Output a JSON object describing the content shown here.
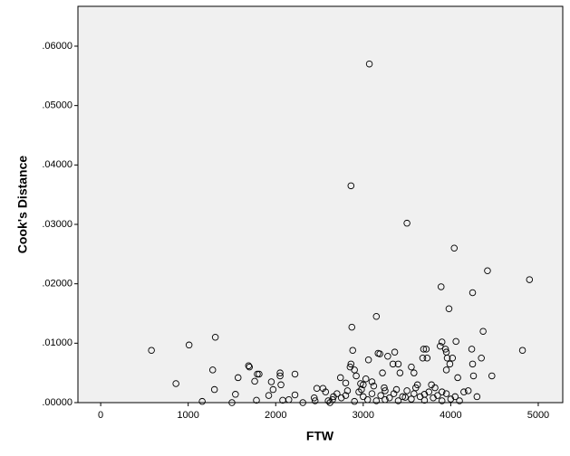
{
  "chart_data": {
    "type": "scatter",
    "x_label": "FTW",
    "y_label": "Cook's Distance",
    "color": "#000000",
    "xlim": [
      -260,
      5280
    ],
    "ylim": [
      0,
      0.0667
    ],
    "xticks": [
      0,
      1000,
      2000,
      3000,
      4000,
      5000
    ],
    "yticks": [
      {
        "value": 0,
        "label": ".00000"
      },
      {
        "value": 0.01,
        "label": ".01000"
      },
      {
        "value": 0.02,
        "label": ".02000"
      },
      {
        "value": 0.03,
        "label": ".03000"
      },
      {
        "value": 0.04,
        "label": ".04000"
      },
      {
        "value": 0.05,
        "label": ".05000"
      },
      {
        "value": 0.06,
        "label": ".06000"
      }
    ],
    "x": [
      580,
      860,
      1010,
      1160,
      1280,
      1300,
      1310,
      1500,
      1540,
      1570,
      1690,
      1700,
      1760,
      1790,
      1810,
      1780,
      1920,
      1950,
      1970,
      2050,
      2050,
      2060,
      2080,
      2150,
      2220,
      2220,
      2310,
      2440,
      2470,
      2540,
      2570,
      2620,
      2660,
      2740,
      2800,
      2820,
      2850,
      2860,
      2860,
      2870,
      2880,
      2900,
      2920,
      2970,
      3000,
      3030,
      3060,
      3070,
      3100,
      3150,
      3170,
      3190,
      3220,
      3240,
      3280,
      3340,
      3360,
      3400,
      3420,
      3500,
      3550,
      3580,
      3620,
      3680,
      3690,
      3720,
      3730,
      3780,
      3880,
      3890,
      3900,
      3940,
      3950,
      3950,
      3960,
      3980,
      3990,
      4020,
      4040,
      4060,
      4080,
      4240,
      4250,
      4250,
      4260,
      4370,
      4420,
      4470,
      4820,
      4900,
      4350,
      4200,
      4300,
      4150,
      2650,
      2700,
      2750,
      2800,
      2900,
      2950,
      3000,
      3050,
      3100,
      3150,
      3200,
      3250,
      3300,
      3350,
      3400,
      3450,
      3500,
      3550,
      3600,
      3650,
      3700,
      3750,
      3800,
      3850,
      3900,
      3950,
      4000,
      4050,
      3120,
      3380,
      3580,
      3820,
      2980,
      3250,
      3480,
      3700,
      3900,
      4100,
      2600,
      2450
    ],
    "values": [
      0.0088,
      0.0032,
      0.0097,
      0.0002,
      0.0055,
      0.0022,
      0.011,
      0,
      0.0014,
      0.0042,
      0.0062,
      0.006,
      0.0036,
      0.0048,
      0.0048,
      0.0004,
      0.0012,
      0.0035,
      0.0022,
      0.0045,
      0.005,
      0.003,
      0.0004,
      0.0005,
      0.0048,
      0.0013,
      0,
      0.0008,
      0.0024,
      0.0024,
      0.0018,
      0,
      0.001,
      0.0042,
      0.0033,
      0.002,
      0.006,
      0.0065,
      0.0365,
      0.0127,
      0.0088,
      0.0055,
      0.0045,
      0.0032,
      0.003,
      0.004,
      0.0072,
      0.057,
      0.0035,
      0.0145,
      0.0083,
      0.0082,
      0.005,
      0.0025,
      0.0078,
      0.0065,
      0.0085,
      0.0065,
      0.005,
      0.0302,
      0.006,
      0.005,
      0.003,
      0.0075,
      0.009,
      0.009,
      0.0075,
      0.003,
      0.0095,
      0.0195,
      0.0102,
      0.009,
      0.0055,
      0.0085,
      0.0075,
      0.0158,
      0.0065,
      0.0075,
      0.026,
      0.0103,
      0.0042,
      0.009,
      0.0185,
      0.0065,
      0.0045,
      0.012,
      0.0222,
      0.0045,
      0.0088,
      0.0207,
      0.0075,
      0.002,
      0.001,
      0.0018,
      0.0005,
      0.0015,
      0.0008,
      0.0012,
      0.0002,
      0.0018,
      0.001,
      0.0005,
      0.0015,
      0.0003,
      0.0012,
      0.002,
      0.0008,
      0.0015,
      0.0003,
      0.001,
      0.002,
      0.0006,
      0.0025,
      0.001,
      0.0004,
      0.0018,
      0.0008,
      0.0012,
      0.0003,
      0.0015,
      0.0006,
      0.001,
      0.0028,
      0.0022,
      0.0015,
      0.0025,
      0.0022,
      0.0005,
      0.0009,
      0.0014,
      0.0018,
      0.0003,
      0.0003,
      0.0003
    ]
  }
}
